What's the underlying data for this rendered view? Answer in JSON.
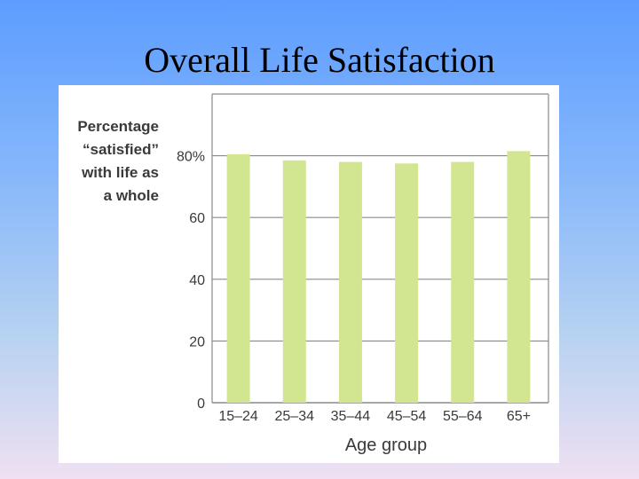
{
  "slide": {
    "title": "Overall Life Satisfaction"
  },
  "chart_data": {
    "type": "bar",
    "categories": [
      "15–24",
      "25–34",
      "35–44",
      "45–54",
      "55–64",
      "65+"
    ],
    "values": [
      80.5,
      78.5,
      78,
      77.5,
      78,
      81.5
    ],
    "ylim": [
      0,
      100
    ],
    "yticks": [
      0,
      20,
      40,
      60,
      80
    ],
    "ytick_labels": [
      "0",
      "20",
      "40",
      "60",
      "80%"
    ],
    "ylabel_lines": [
      "Percentage",
      "“satisfied”",
      "with life as",
      "a whole"
    ],
    "xlabel": "Age group",
    "grid": true,
    "bar_color": "#d2e591",
    "grid_color": "#8a8a8a"
  }
}
